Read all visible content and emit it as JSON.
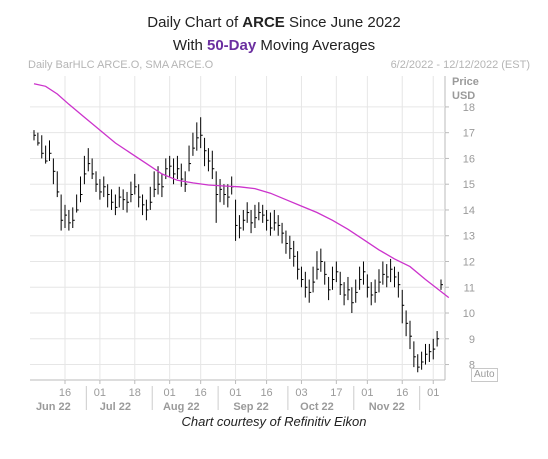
{
  "title": {
    "line1_prefix": "Daily Chart of ",
    "ticker": "ARCE",
    "line1_suffix": " Since June 2022",
    "line2_prefix": "With ",
    "sma_label": "50-Day",
    "line2_suffix": " Moving Averages"
  },
  "subtitle_left": "Daily BarHLC ARCE.O, SMA ARCE.O",
  "subtitle_right": "6/2/2022 - 12/12/2022 (EST)",
  "credit": "Chart courtesy of Refinitiv Eikon",
  "auto_label": "Auto",
  "colors": {
    "bars": "#000000",
    "sma": "#cc33cc",
    "grid": "#e6e6e6",
    "axis_text": "#9a9a9a",
    "accent": "#6b2fa0"
  },
  "chart_data": {
    "type": "line",
    "series": [
      {
        "values": [
          [
            16.9,
            17.1,
            16.7
          ],
          [
            16.6,
            17.0,
            16.5
          ],
          [
            16.2,
            16.9,
            16.0
          ],
          [
            15.9,
            16.5,
            15.8
          ],
          [
            16.2,
            16.7,
            15.9
          ],
          [
            15.5,
            16.0,
            15.0
          ],
          [
            14.7,
            15.5,
            14.5
          ],
          [
            13.6,
            14.6,
            13.2
          ],
          [
            13.8,
            14.2,
            13.3
          ],
          [
            13.5,
            14.0,
            13.2
          ],
          [
            13.6,
            14.1,
            13.3
          ],
          [
            14.0,
            14.6,
            13.9
          ],
          [
            14.6,
            15.3,
            14.3
          ],
          [
            15.4,
            16.1,
            15.0
          ],
          [
            15.8,
            16.4,
            15.5
          ],
          [
            15.4,
            16.0,
            15.2
          ],
          [
            15.0,
            15.5,
            14.7
          ],
          [
            14.7,
            15.2,
            14.4
          ],
          [
            14.9,
            15.3,
            14.5
          ],
          [
            14.6,
            15.0,
            14.1
          ],
          [
            14.3,
            14.8,
            14.0
          ],
          [
            14.1,
            14.6,
            13.8
          ],
          [
            14.5,
            14.9,
            14.1
          ],
          [
            14.4,
            14.8,
            14.0
          ],
          [
            14.3,
            14.7,
            13.9
          ],
          [
            14.6,
            15.1,
            14.3
          ],
          [
            14.9,
            15.4,
            14.6
          ],
          [
            14.5,
            15.0,
            14.1
          ],
          [
            14.2,
            14.6,
            13.8
          ],
          [
            14.0,
            14.4,
            13.6
          ],
          [
            14.3,
            14.9,
            14.0
          ],
          [
            14.8,
            15.5,
            14.5
          ],
          [
            15.0,
            15.7,
            14.6
          ],
          [
            14.9,
            15.4,
            14.5
          ],
          [
            15.6,
            16.0,
            15.2
          ],
          [
            15.7,
            16.1,
            15.3
          ],
          [
            15.4,
            16.0,
            15.0
          ],
          [
            15.6,
            16.1,
            15.2
          ],
          [
            15.2,
            15.8,
            14.9
          ],
          [
            15.0,
            15.5,
            14.7
          ],
          [
            15.8,
            16.5,
            15.5
          ],
          [
            16.4,
            17.0,
            16.1
          ],
          [
            16.8,
            17.4,
            16.3
          ],
          [
            16.9,
            17.6,
            16.4
          ],
          [
            16.3,
            16.8,
            15.7
          ],
          [
            15.9,
            16.4,
            15.5
          ],
          [
            15.6,
            16.3,
            15.2
          ],
          [
            14.6,
            15.5,
            13.5
          ],
          [
            14.8,
            15.2,
            14.3
          ],
          [
            14.6,
            15.0,
            14.2
          ],
          [
            14.5,
            15.0,
            14.1
          ],
          [
            14.9,
            15.3,
            14.6
          ],
          [
            13.4,
            14.4,
            12.8
          ],
          [
            13.3,
            13.8,
            12.9
          ],
          [
            13.6,
            14.0,
            13.2
          ],
          [
            13.9,
            14.3,
            13.5
          ],
          [
            13.5,
            14.0,
            13.1
          ],
          [
            13.7,
            14.2,
            13.3
          ],
          [
            13.9,
            14.3,
            13.6
          ],
          [
            13.8,
            14.2,
            13.5
          ],
          [
            13.6,
            14.0,
            13.2
          ],
          [
            13.3,
            13.9,
            13.0
          ],
          [
            13.5,
            14.0,
            13.2
          ],
          [
            13.4,
            13.8,
            13.0
          ],
          [
            13.1,
            13.5,
            12.7
          ],
          [
            12.7,
            13.2,
            12.3
          ],
          [
            12.5,
            13.0,
            12.1
          ],
          [
            12.2,
            12.8,
            11.8
          ],
          [
            11.7,
            12.4,
            11.3
          ],
          [
            11.3,
            11.8,
            11.0
          ],
          [
            11.0,
            11.6,
            10.6
          ],
          [
            10.8,
            11.3,
            10.4
          ],
          [
            11.2,
            11.8,
            10.8
          ],
          [
            11.7,
            12.4,
            11.3
          ],
          [
            12.0,
            12.5,
            11.6
          ],
          [
            11.5,
            12.0,
            11.1
          ],
          [
            10.9,
            11.4,
            10.5
          ],
          [
            11.3,
            11.8,
            10.9
          ],
          [
            11.6,
            12.0,
            11.2
          ],
          [
            11.1,
            11.6,
            10.7
          ],
          [
            10.7,
            11.2,
            10.3
          ],
          [
            10.9,
            11.4,
            10.5
          ],
          [
            10.4,
            11.0,
            10.0
          ],
          [
            10.8,
            11.3,
            10.4
          ],
          [
            11.3,
            11.8,
            10.9
          ],
          [
            11.6,
            12.0,
            11.1
          ],
          [
            11.0,
            11.5,
            10.6
          ],
          [
            10.7,
            11.2,
            10.3
          ],
          [
            10.8,
            11.3,
            10.4
          ],
          [
            11.2,
            11.7,
            10.8
          ],
          [
            11.5,
            12.0,
            11.1
          ],
          [
            11.4,
            11.9,
            11.0
          ],
          [
            11.7,
            12.1,
            11.2
          ],
          [
            11.4,
            11.8,
            11.0
          ],
          [
            11.1,
            11.6,
            10.6
          ],
          [
            10.3,
            10.9,
            9.6
          ],
          [
            9.6,
            10.1,
            9.1
          ],
          [
            9.1,
            9.7,
            8.6
          ],
          [
            8.3,
            8.9,
            7.9
          ],
          [
            7.9,
            8.4,
            7.7
          ],
          [
            8.1,
            8.5,
            7.8
          ],
          [
            8.4,
            8.8,
            8.0
          ],
          [
            8.5,
            8.8,
            8.1
          ],
          [
            8.6,
            9.0,
            8.2
          ],
          [
            9.0,
            9.3,
            8.7
          ],
          [
            11.1,
            11.3,
            10.9
          ]
        ],
        "value_format": "[close, high, low] in USD"
      },
      {
        "values": [
          [
            0,
            18.9
          ],
          [
            3,
            18.8
          ],
          [
            6,
            18.5
          ],
          [
            9,
            18.1
          ],
          [
            13,
            17.6
          ],
          [
            17,
            17.1
          ],
          [
            21,
            16.6
          ],
          [
            25,
            16.2
          ],
          [
            29,
            15.8
          ],
          [
            33,
            15.4
          ],
          [
            37,
            15.15
          ],
          [
            41,
            15.05
          ],
          [
            45,
            14.97
          ],
          [
            49,
            14.93
          ],
          [
            53,
            14.9
          ],
          [
            57,
            14.83
          ],
          [
            61,
            14.65
          ],
          [
            65,
            14.4
          ],
          [
            69,
            14.15
          ],
          [
            73,
            13.9
          ],
          [
            77,
            13.6
          ],
          [
            81,
            13.25
          ],
          [
            85,
            12.85
          ],
          [
            89,
            12.45
          ],
          [
            93,
            12.1
          ],
          [
            97,
            11.8
          ],
          [
            101,
            11.3
          ],
          [
            104,
            10.95
          ],
          [
            107,
            10.6
          ]
        ],
        "value_format": "[bar index, USD]"
      }
    ],
    "y_axis": {
      "label_line1": "Price",
      "label_line2": "USD",
      "ticks": [
        "8",
        "9",
        "10",
        "11",
        "12",
        "13",
        "14",
        "15",
        "16",
        "17",
        "18"
      ],
      "range": [
        7.4,
        19.2
      ]
    },
    "x_axis": {
      "day_ticks": [
        "16",
        "01",
        "18",
        "01",
        "16",
        "01",
        "16",
        "03",
        "17",
        "01",
        "16",
        "01"
      ],
      "month_labels": [
        "Jun 22",
        "Jul 22",
        "Aug 22",
        "Sep 22",
        "Oct 22",
        "Nov 22"
      ]
    },
    "grid": true
  }
}
